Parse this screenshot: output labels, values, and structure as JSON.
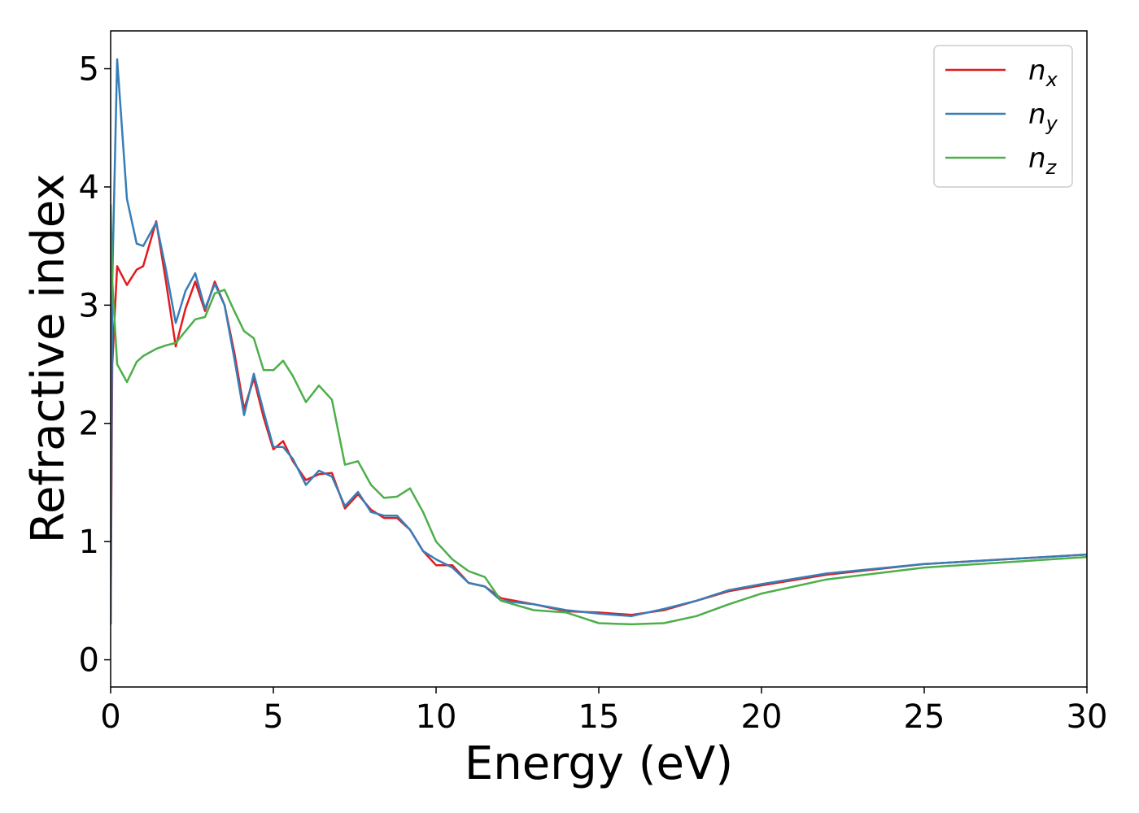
{
  "chart_data": {
    "type": "line",
    "xlabel": "Energy (eV)",
    "ylabel": "Refractive index",
    "x": [
      0,
      0.05,
      0.2,
      0.5,
      0.8,
      1.0,
      1.4,
      1.7,
      2.0,
      2.3,
      2.6,
      2.9,
      3.2,
      3.5,
      3.8,
      4.1,
      4.4,
      4.7,
      5.0,
      5.3,
      5.6,
      6.0,
      6.4,
      6.8,
      7.2,
      7.6,
      8.0,
      8.4,
      8.8,
      9.2,
      9.6,
      10,
      10.5,
      11,
      11.5,
      12,
      13,
      14,
      15,
      16,
      17,
      18,
      19,
      20,
      22,
      25,
      30
    ],
    "series": [
      {
        "name": "n_x",
        "color": "#e41a1c",
        "values": [
          0.3,
          2.5,
          3.33,
          3.17,
          3.3,
          3.33,
          3.71,
          3.2,
          2.65,
          2.97,
          3.2,
          2.95,
          3.2,
          3.0,
          2.6,
          2.12,
          2.38,
          2.05,
          1.78,
          1.85,
          1.68,
          1.52,
          1.57,
          1.58,
          1.28,
          1.4,
          1.27,
          1.2,
          1.2,
          1.1,
          0.92,
          0.8,
          0.8,
          0.65,
          0.62,
          0.52,
          0.47,
          0.41,
          0.4,
          0.38,
          0.42,
          0.5,
          0.58,
          0.63,
          0.72,
          0.81,
          0.89
        ]
      },
      {
        "name": "n_y",
        "color": "#377eb8",
        "values": [
          0.3,
          3.2,
          5.08,
          3.9,
          3.52,
          3.5,
          3.7,
          3.3,
          2.85,
          3.12,
          3.27,
          2.97,
          3.18,
          3.0,
          2.55,
          2.07,
          2.42,
          2.1,
          1.8,
          1.8,
          1.7,
          1.48,
          1.6,
          1.55,
          1.3,
          1.42,
          1.25,
          1.22,
          1.22,
          1.1,
          0.92,
          0.85,
          0.78,
          0.65,
          0.62,
          0.5,
          0.47,
          0.42,
          0.39,
          0.37,
          0.43,
          0.5,
          0.59,
          0.64,
          0.73,
          0.81,
          0.89
        ]
      },
      {
        "name": "n_z",
        "color": "#4daf4a",
        "values": [
          3.85,
          3.2,
          2.5,
          2.35,
          2.52,
          2.57,
          2.63,
          2.66,
          2.68,
          2.78,
          2.88,
          2.9,
          3.1,
          3.13,
          2.95,
          2.78,
          2.72,
          2.45,
          2.45,
          2.53,
          2.4,
          2.18,
          2.32,
          2.2,
          1.65,
          1.68,
          1.48,
          1.37,
          1.38,
          1.45,
          1.25,
          1.0,
          0.85,
          0.75,
          0.7,
          0.5,
          0.42,
          0.4,
          0.31,
          0.3,
          0.31,
          0.37,
          0.47,
          0.56,
          0.68,
          0.78,
          0.87
        ]
      }
    ],
    "xlim": [
      0,
      30
    ],
    "xticks": [
      0,
      5,
      10,
      15,
      20,
      25,
      30
    ],
    "ylim": [
      -0.23,
      5.32
    ],
    "yticks": [
      0,
      1,
      2,
      3,
      4,
      5
    ],
    "grid": false,
    "legend": "upper right"
  }
}
